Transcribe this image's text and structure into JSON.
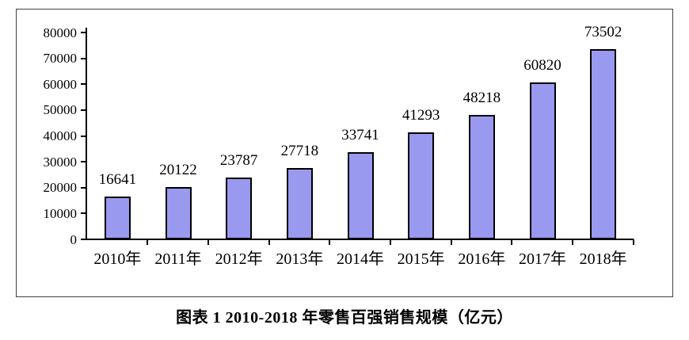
{
  "figure": {
    "caption": "图表 1  2010-2018 年零售百强销售规模（亿元）"
  },
  "chart_data": {
    "type": "bar",
    "title": "图表 1  2010-2018 年零售百强销售规模（亿元）",
    "categories": [
      "2010年",
      "2011年",
      "2012年",
      "2013年",
      "2014年",
      "2015年",
      "2016年",
      "2017年",
      "2018年"
    ],
    "values": [
      16641,
      20122,
      23787,
      27718,
      33741,
      41293,
      48218,
      60820,
      73502
    ],
    "data_labels": [
      "16641",
      "20122",
      "23787",
      "27718",
      "33741",
      "41293",
      "48218",
      "60820",
      "73502"
    ],
    "xlabel": "",
    "ylabel": "",
    "ylim": [
      0,
      80000
    ],
    "ytick_interval": 10000,
    "ytick_labels": [
      "0",
      "10000",
      "20000",
      "30000",
      "40000",
      "50000",
      "60000",
      "70000",
      "80000"
    ],
    "grid": "off",
    "legend": "none",
    "data_labels_shown": true,
    "colors": {
      "bar_fill": "#9999F0",
      "bar_border": "#000000",
      "axis": "#000000",
      "frame_border": "#404040",
      "text": "#000000",
      "background": "#FFFFFF"
    }
  }
}
